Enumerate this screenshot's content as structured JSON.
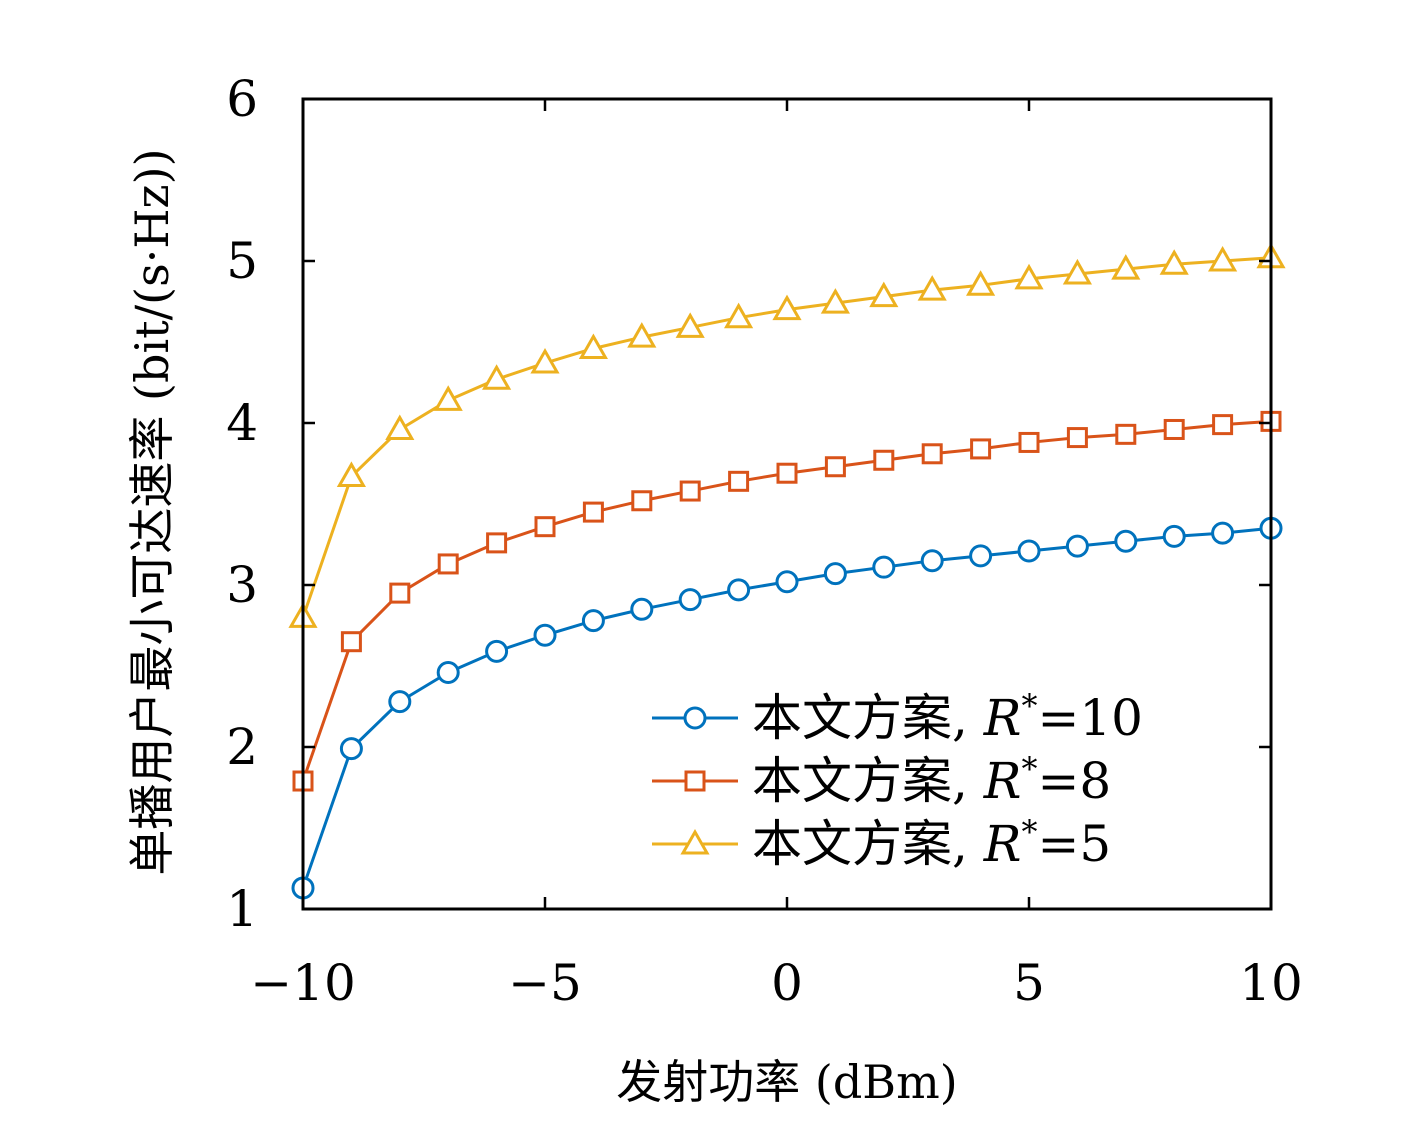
{
  "chart_data": {
    "type": "line",
    "xlabel": "发射功率 (dBm)",
    "ylabel": "单播用户最小可达速率 (bit/(s·Hz))",
    "xlim": [
      -10,
      10
    ],
    "ylim": [
      1,
      6
    ],
    "xticks": [
      -10,
      -5,
      0,
      5,
      10
    ],
    "xtick_labels": [
      "−10",
      "−5",
      "0",
      "5",
      "10"
    ],
    "yticks": [
      1,
      2,
      3,
      4,
      5,
      6
    ],
    "ytick_labels": [
      "1",
      "2",
      "3",
      "4",
      "5",
      "6"
    ],
    "grid": false,
    "legend_position": "bottom-right",
    "x": [
      -10,
      -9,
      -8,
      -7,
      -6,
      -5,
      -4,
      -3,
      -2,
      -1,
      0,
      1,
      2,
      3,
      4,
      5,
      6,
      7,
      8,
      9,
      10
    ],
    "series": [
      {
        "name": "本文方案, R*=10",
        "label_prefix": "本文方案, ",
        "label_var": "R",
        "label_sup": "*",
        "label_value": "=10",
        "color": "#0072BD",
        "marker": "circle",
        "values": [
          1.13,
          1.99,
          2.28,
          2.46,
          2.59,
          2.69,
          2.78,
          2.85,
          2.91,
          2.97,
          3.02,
          3.07,
          3.11,
          3.15,
          3.18,
          3.21,
          3.24,
          3.27,
          3.3,
          3.32,
          3.35
        ]
      },
      {
        "name": "本文方案, R*=8",
        "label_prefix": "本文方案, ",
        "label_var": "R",
        "label_sup": "*",
        "label_value": "=8",
        "color": "#D95319",
        "marker": "square",
        "values": [
          1.79,
          2.65,
          2.95,
          3.13,
          3.26,
          3.36,
          3.45,
          3.52,
          3.58,
          3.64,
          3.69,
          3.73,
          3.77,
          3.81,
          3.84,
          3.88,
          3.91,
          3.93,
          3.96,
          3.99,
          4.01
        ]
      },
      {
        "name": "本文方案, R*=5",
        "label_prefix": "本文方案, ",
        "label_var": "R",
        "label_sup": "*",
        "label_value": "=5",
        "color": "#EDB120",
        "marker": "triangle",
        "values": [
          2.8,
          3.67,
          3.96,
          4.14,
          4.27,
          4.37,
          4.46,
          4.53,
          4.59,
          4.65,
          4.7,
          4.74,
          4.78,
          4.82,
          4.85,
          4.89,
          4.92,
          4.95,
          4.98,
          5.0,
          5.02
        ]
      }
    ]
  }
}
